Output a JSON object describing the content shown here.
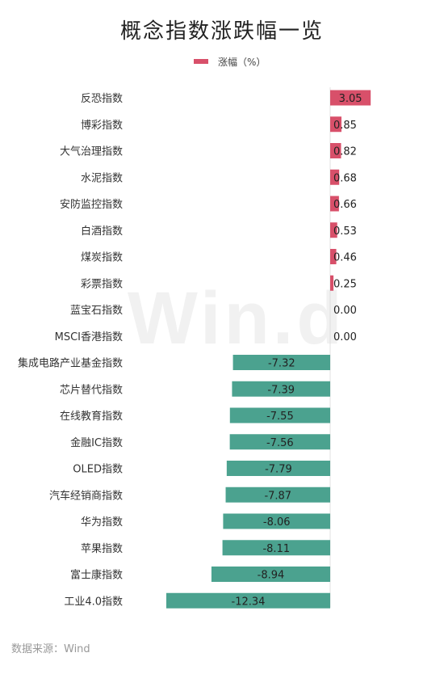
{
  "title": "概念指数涨跌幅一览",
  "legend_label": "涨幅（%）",
  "watermark": "Win.d",
  "source": "数据来源：Wind",
  "colors": {
    "positive": "#d8506a",
    "negative": "#4ba28f",
    "axis": "#e0e0e0"
  },
  "chart_data": {
    "type": "bar",
    "orientation": "horizontal",
    "title": "概念指数涨跌幅一览",
    "series": [
      {
        "name": "涨幅（%）",
        "values": [
          3.05,
          0.85,
          0.82,
          0.68,
          0.66,
          0.53,
          0.46,
          0.25,
          0.0,
          0.0,
          -7.32,
          -7.39,
          -7.55,
          -7.56,
          -7.79,
          -7.87,
          -8.06,
          -8.11,
          -8.94,
          -12.34
        ]
      }
    ],
    "categories": [
      "反恐指数",
      "博彩指数",
      "大气治理指数",
      "水泥指数",
      "安防监控指数",
      "白酒指数",
      "煤炭指数",
      "彩票指数",
      "蓝宝石指数",
      "MSCI香港指数",
      "集成电路产业基金指数",
      "芯片替代指数",
      "在线教育指数",
      "金融IC指数",
      "OLED指数",
      "汽车经销商指数",
      "华为指数",
      "苹果指数",
      "富士康指数",
      "工业4.0指数"
    ],
    "value_labels": [
      "3.05",
      "0.85",
      "0.82",
      "0.68",
      "0.66",
      "0.53",
      "0.46",
      "0.25",
      "0.00",
      "0.00",
      "-7.32",
      "-7.39",
      "-7.55",
      "-7.56",
      "-7.79",
      "-7.87",
      "-8.06",
      "-8.11",
      "-8.94",
      "-12.34"
    ],
    "legend_position": "top-center",
    "grid": false
  }
}
